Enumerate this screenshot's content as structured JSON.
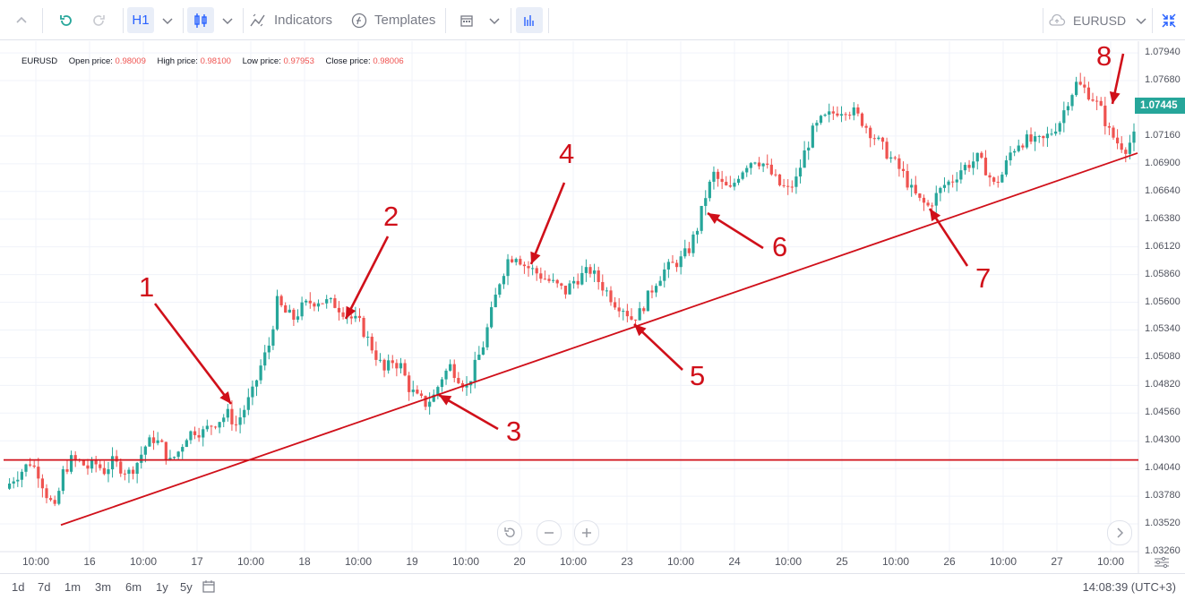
{
  "toolbar": {
    "interval": "H1",
    "indicators_label": "Indicators",
    "templates_label": "Templates",
    "symbol": "EURUSD",
    "icons": [
      "chevron-up-icon",
      "refresh-icon",
      "redo-icon",
      "chevron-down-icon",
      "candles-icon",
      "indicators-icon",
      "templates-icon",
      "calendar-icon",
      "bars-icon",
      "cloud-icon",
      "fullscreen-icon"
    ]
  },
  "legend": {
    "symbol": "EURUSD",
    "open_label": "Open price:",
    "open": "0.98009",
    "high_label": "High price:",
    "high": "0.98100",
    "low_label": "Low price:",
    "low": "0.97953",
    "close_label": "Close price:",
    "close": "0.98006"
  },
  "price_axis": {
    "labels": [
      "1.07940",
      "1.07680",
      "1.07160",
      "1.06900",
      "1.06640",
      "1.06380",
      "1.06120",
      "1.05860",
      "1.05600",
      "1.05340",
      "1.05080",
      "1.04820",
      "1.04560",
      "1.04300",
      "1.04040",
      "1.03780",
      "1.03520",
      "1.03260"
    ],
    "current_price": "1.07445",
    "current_color": "#26a69a"
  },
  "time_axis": {
    "labels": [
      "10:00",
      "16",
      "10:00",
      "17",
      "10:00",
      "18",
      "10:00",
      "19",
      "10:00",
      "20",
      "10:00",
      "23",
      "10:00",
      "24",
      "10:00",
      "25",
      "10:00",
      "26",
      "10:00",
      "27",
      "10:00"
    ]
  },
  "annotations": [
    "1",
    "2",
    "3",
    "4",
    "5",
    "6",
    "7",
    "8"
  ],
  "colors": {
    "up": "#26a69a",
    "down": "#ef5350",
    "drawing": "#d0101a",
    "accent": "#2962ff"
  },
  "bottom": {
    "ranges": [
      "1d",
      "7d",
      "1m",
      "3m",
      "6m",
      "1y",
      "5y"
    ],
    "clock": "14:08:39 (UTC+3)"
  },
  "chart_data": {
    "type": "candlestick",
    "symbol": "EURUSD",
    "interval": "H1",
    "ylim": [
      1.0326,
      1.0805
    ],
    "horizontal_line": 1.0412,
    "trendline": [
      [
        0,
        1.0351
      ],
      [
        1,
        1.07
      ]
    ],
    "path_close": [
      1.0385,
      1.0395,
      1.0402,
      1.041,
      1.04,
      1.038,
      1.0365,
      1.04,
      1.0412,
      1.041,
      1.0405,
      1.0408,
      1.0402,
      1.041,
      1.0405,
      1.04,
      1.041,
      1.0425,
      1.0432,
      1.0425,
      1.041,
      1.042,
      1.0435,
      1.044,
      1.0438,
      1.0445,
      1.045,
      1.0455,
      1.0445,
      1.046,
      1.0475,
      1.05,
      1.052,
      1.056,
      1.055,
      1.0545,
      1.0555,
      1.056,
      1.0562,
      1.056,
      1.0558,
      1.0552,
      1.0545,
      1.054,
      1.0525,
      1.051,
      1.0495,
      1.0505,
      1.05,
      1.048,
      1.047,
      1.0465,
      1.0472,
      1.049,
      1.05,
      1.049,
      1.048,
      1.05,
      1.052,
      1.055,
      1.058,
      1.06,
      1.0605,
      1.0595,
      1.059,
      1.0585,
      1.058,
      1.0575,
      1.057,
      1.058,
      1.0585,
      1.059,
      1.058,
      1.057,
      1.056,
      1.0555,
      1.0545,
      1.055,
      1.0565,
      1.058,
      1.059,
      1.0595,
      1.06,
      1.061,
      1.063,
      1.066,
      1.068,
      1.067,
      1.0665,
      1.068,
      1.069,
      1.0695,
      1.069,
      1.068,
      1.067,
      1.0665,
      1.0675,
      1.07,
      1.072,
      1.073,
      1.0735,
      1.074,
      1.0742,
      1.0738,
      1.073,
      1.072,
      1.071,
      1.07,
      1.069,
      1.068,
      1.0665,
      1.0655,
      1.065,
      1.066,
      1.067,
      1.0675,
      1.0685,
      1.069,
      1.0695,
      1.0685,
      1.067,
      1.068,
      1.07,
      1.071,
      1.0712,
      1.071,
      1.0712,
      1.072,
      1.073,
      1.075,
      1.0765,
      1.076,
      1.0752,
      1.074,
      1.072,
      1.071,
      1.0705,
      1.0715
    ]
  }
}
